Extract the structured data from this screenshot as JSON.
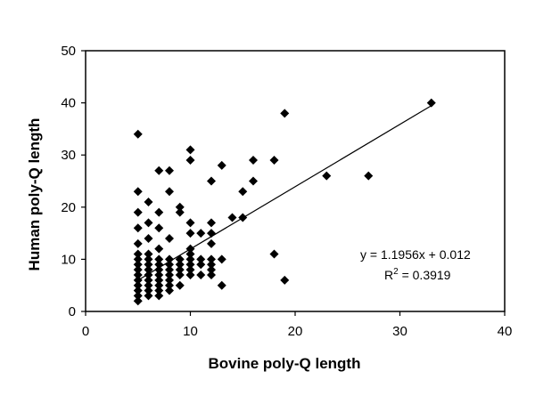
{
  "chart_data": {
    "type": "scatter",
    "title": "",
    "xlabel": "Bovine poly-Q length",
    "ylabel": "Human poly-Q length",
    "xlim": [
      0,
      40
    ],
    "ylim": [
      0,
      50
    ],
    "xticks": [
      0,
      10,
      20,
      30,
      40
    ],
    "yticks": [
      0,
      10,
      20,
      30,
      40,
      50
    ],
    "grid": false,
    "legend": "none",
    "marker": "diamond",
    "marker_color": "#000000",
    "series": [
      {
        "points": [
          [
            5,
            34
          ],
          [
            5,
            23
          ],
          [
            5,
            19
          ],
          [
            5,
            16
          ],
          [
            5,
            13
          ],
          [
            5,
            11
          ],
          [
            5,
            10
          ],
          [
            5,
            9
          ],
          [
            5,
            8
          ],
          [
            5,
            7
          ],
          [
            5,
            6
          ],
          [
            5,
            5
          ],
          [
            5,
            4
          ],
          [
            5,
            3
          ],
          [
            5,
            2
          ],
          [
            6,
            21
          ],
          [
            6,
            17
          ],
          [
            6,
            14
          ],
          [
            6,
            11
          ],
          [
            6,
            10
          ],
          [
            6,
            9
          ],
          [
            6,
            8
          ],
          [
            6,
            7
          ],
          [
            6,
            6
          ],
          [
            6,
            5
          ],
          [
            6,
            4
          ],
          [
            6,
            3
          ],
          [
            7,
            27
          ],
          [
            7,
            19
          ],
          [
            7,
            16
          ],
          [
            7,
            12
          ],
          [
            7,
            10
          ],
          [
            7,
            9
          ],
          [
            7,
            8
          ],
          [
            7,
            7
          ],
          [
            7,
            6
          ],
          [
            7,
            5
          ],
          [
            7,
            4
          ],
          [
            7,
            3
          ],
          [
            8,
            27
          ],
          [
            8,
            23
          ],
          [
            8,
            14
          ],
          [
            8,
            10
          ],
          [
            8,
            9
          ],
          [
            8,
            8
          ],
          [
            8,
            7
          ],
          [
            8,
            6
          ],
          [
            8,
            5
          ],
          [
            8,
            4
          ],
          [
            9,
            20
          ],
          [
            9,
            19
          ],
          [
            9,
            10
          ],
          [
            9,
            9
          ],
          [
            9,
            8
          ],
          [
            9,
            7
          ],
          [
            9,
            5
          ],
          [
            10,
            31
          ],
          [
            10,
            29
          ],
          [
            10,
            17
          ],
          [
            10,
            15
          ],
          [
            10,
            12
          ],
          [
            10,
            11
          ],
          [
            10,
            10
          ],
          [
            10,
            9
          ],
          [
            10,
            8
          ],
          [
            10,
            7
          ],
          [
            11,
            15
          ],
          [
            11,
            10
          ],
          [
            11,
            9
          ],
          [
            11,
            7
          ],
          [
            12,
            25
          ],
          [
            12,
            17
          ],
          [
            12,
            15
          ],
          [
            12,
            13
          ],
          [
            12,
            10
          ],
          [
            12,
            9
          ],
          [
            12,
            8
          ],
          [
            12,
            7
          ],
          [
            13,
            28
          ],
          [
            13,
            10
          ],
          [
            13,
            5
          ],
          [
            14,
            18
          ],
          [
            15,
            23
          ],
          [
            15,
            18
          ],
          [
            16,
            29
          ],
          [
            16,
            25
          ],
          [
            18,
            29
          ],
          [
            18,
            11
          ],
          [
            19,
            38
          ],
          [
            19,
            6
          ],
          [
            23,
            26
          ],
          [
            27,
            26
          ],
          [
            33,
            40
          ]
        ]
      }
    ],
    "trendline": {
      "type": "linear",
      "slope": 1.1956,
      "intercept": 0.012,
      "x_range": [
        5,
        33
      ]
    },
    "annotations": {
      "equation": "y = 1.1956x + 0.012",
      "r2_prefix": "R",
      "r2_sup": "2",
      "r2_suffix": " = 0.3919"
    }
  }
}
